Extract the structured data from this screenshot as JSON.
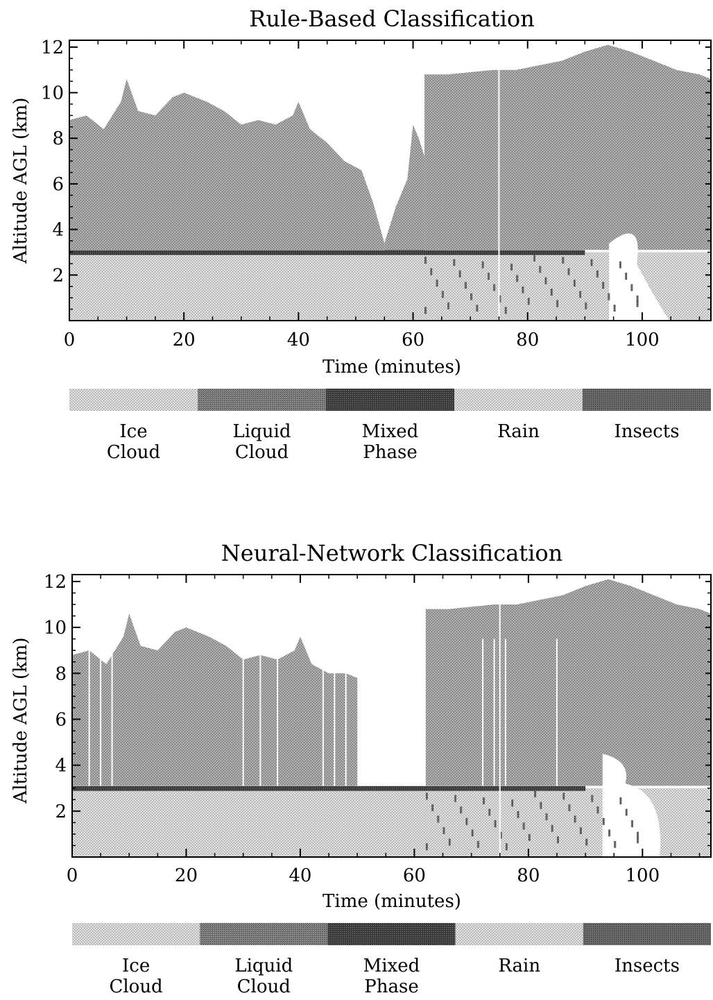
{
  "chart_data": [
    {
      "type": "heatmap",
      "title": "Rule-Based Classification",
      "xlabel": "Time (minutes)",
      "ylabel": "Altitude AGL (km)",
      "xlim": [
        0,
        112
      ],
      "ylim": [
        0,
        12.3
      ],
      "xticks": [
        "0",
        "20",
        "40",
        "60",
        "80",
        "100"
      ],
      "yticks": [
        "2",
        "4",
        "6",
        "8",
        "10",
        "12"
      ],
      "regions": [
        {
          "class": "Rain",
          "x": [
            0,
            112
          ],
          "y_bottom": 0,
          "y_top": 3.0
        },
        {
          "class": "Mixed Phase",
          "x": [
            0,
            90
          ],
          "y": 3.0,
          "note_layer": "melting layer band"
        },
        {
          "class": "Ice Cloud",
          "x": [
            0,
            55
          ],
          "y_bottom": 3.1,
          "y_top_profile": [
            [
              0,
              8.8
            ],
            [
              3,
              9.0
            ],
            [
              6,
              8.4
            ],
            [
              9,
              9.6
            ],
            [
              10,
              10.6
            ],
            [
              12,
              9.2
            ],
            [
              15,
              9.0
            ],
            [
              18,
              9.8
            ],
            [
              20,
              10.0
            ],
            [
              24,
              9.6
            ],
            [
              27,
              9.2
            ],
            [
              30,
              8.6
            ],
            [
              33,
              8.8
            ],
            [
              36,
              8.6
            ],
            [
              39,
              9.0
            ],
            [
              40,
              9.6
            ],
            [
              42,
              8.4
            ],
            [
              45,
              7.8
            ],
            [
              48,
              7.0
            ],
            [
              51,
              6.6
            ],
            [
              53,
              5.2
            ],
            [
              55,
              3.4
            ]
          ]
        },
        {
          "class": "Ice Cloud",
          "x": [
            55,
            62
          ],
          "y_bottom": 3.0,
          "y_top_profile": [
            [
              55,
              3.4
            ],
            [
              57,
              5.0
            ],
            [
              59,
              6.2
            ],
            [
              60,
              8.6
            ],
            [
              61,
              8.0
            ],
            [
              62,
              7.2
            ]
          ]
        },
        {
          "class": "Ice Cloud",
          "x": [
            62,
            112
          ],
          "y_bottom": 3.1,
          "y_top_profile": [
            [
              62,
              10.8
            ],
            [
              66,
              10.8
            ],
            [
              70,
              10.9
            ],
            [
              74,
              11.0
            ],
            [
              78,
              11.0
            ],
            [
              82,
              11.2
            ],
            [
              86,
              11.4
            ],
            [
              90,
              11.8
            ],
            [
              94,
              12.1
            ],
            [
              98,
              11.8
            ],
            [
              102,
              11.4
            ],
            [
              106,
              11.0
            ],
            [
              110,
              10.8
            ],
            [
              112,
              10.6
            ]
          ]
        },
        {
          "class": "none",
          "label": "clear gap (inner)",
          "x": [
            93,
            112
          ],
          "y_bottom": 0,
          "y_top": 4.6
        }
      ]
    },
    {
      "type": "heatmap",
      "title": "Neural-Network Classification",
      "xlabel": "Time (minutes)",
      "ylabel": "Altitude AGL (km)",
      "xlim": [
        0,
        112
      ],
      "ylim": [
        0,
        12.3
      ],
      "xticks": [
        "0",
        "20",
        "40",
        "60",
        "80",
        "100"
      ],
      "yticks": [
        "2",
        "4",
        "6",
        "8",
        "10",
        "12"
      ],
      "regions": [
        {
          "class": "Rain",
          "x": [
            0,
            112
          ],
          "y_bottom": 0,
          "y_top": 3.0
        },
        {
          "class": "Mixed Phase",
          "x": [
            0,
            90
          ],
          "y": 3.0
        },
        {
          "class": "Ice Cloud",
          "x": [
            0,
            50
          ],
          "y_bottom": 3.1,
          "y_top_profile": [
            [
              0,
              8.8
            ],
            [
              3,
              9.0
            ],
            [
              6,
              8.4
            ],
            [
              9,
              9.6
            ],
            [
              10,
              10.6
            ],
            [
              12,
              9.2
            ],
            [
              15,
              9.0
            ],
            [
              18,
              9.8
            ],
            [
              20,
              10.0
            ],
            [
              24,
              9.6
            ],
            [
              27,
              9.2
            ],
            [
              30,
              8.6
            ],
            [
              33,
              8.8
            ],
            [
              36,
              8.6
            ],
            [
              39,
              9.0
            ],
            [
              40,
              9.6
            ],
            [
              42,
              8.4
            ],
            [
              45,
              8.0
            ],
            [
              48,
              8.0
            ],
            [
              50,
              7.8
            ]
          ]
        },
        {
          "class": "Ice Cloud",
          "x": [
            62,
            112
          ],
          "y_bottom": 3.1,
          "y_top_profile": [
            [
              62,
              10.8
            ],
            [
              66,
              10.8
            ],
            [
              70,
              10.9
            ],
            [
              74,
              11.0
            ],
            [
              78,
              11.0
            ],
            [
              82,
              11.2
            ],
            [
              86,
              11.4
            ],
            [
              90,
              11.8
            ],
            [
              94,
              12.1
            ],
            [
              98,
              11.8
            ],
            [
              102,
              11.4
            ],
            [
              106,
              11.0
            ],
            [
              110,
              10.8
            ],
            [
              112,
              10.6
            ]
          ]
        },
        {
          "class": "none",
          "label": "clear gaps",
          "x_lines": [
            3,
            5,
            7,
            30,
            33,
            36,
            44,
            46,
            48,
            61,
            72,
            74,
            76,
            85
          ]
        }
      ]
    }
  ],
  "legend": {
    "classes": [
      {
        "name": "Ice Cloud",
        "lines": [
          "Ice",
          "Cloud"
        ],
        "color": "#bdbdbd"
      },
      {
        "name": "Liquid Cloud",
        "lines": [
          "Liquid",
          "Cloud"
        ],
        "color": "#7e7e7e"
      },
      {
        "name": "Mixed Phase",
        "lines": [
          "Mixed",
          "Phase"
        ],
        "color": "#4a4a4a"
      },
      {
        "name": "Rain",
        "lines": [
          "Rain"
        ],
        "color": "#cfcfcf"
      },
      {
        "name": "Insects",
        "lines": [
          "Insects"
        ],
        "color": "#6f6f6f"
      }
    ]
  },
  "colors": {
    "ice": "#8d8d8d",
    "rain": "#c9c9c9",
    "mixed": "#3a3a3a",
    "liquid": "#7e7e7e"
  }
}
